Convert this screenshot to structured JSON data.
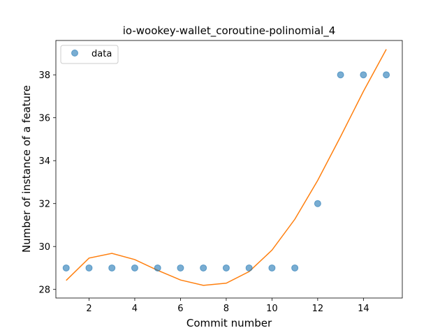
{
  "chart_data": {
    "type": "scatter",
    "title": "io-wookey-wallet_coroutine-polinomial_4",
    "xlabel": "Commit number",
    "ylabel": "Number of instance of a feature",
    "xlim": [
      0.55,
      15.7
    ],
    "ylim": [
      27.6,
      39.6
    ],
    "xticks": [
      2,
      4,
      6,
      8,
      10,
      12,
      14
    ],
    "yticks": [
      28,
      30,
      32,
      34,
      36,
      38
    ],
    "grid": false,
    "legend_position": "top-left",
    "series": [
      {
        "name": "data",
        "kind": "scatter",
        "color": "#1f77b4",
        "x": [
          1,
          2,
          3,
          4,
          5,
          6,
          7,
          8,
          9,
          10,
          11,
          12,
          13,
          14,
          15
        ],
        "y": [
          29,
          29,
          29,
          29,
          29,
          29,
          29,
          29,
          29,
          29,
          29,
          32,
          38,
          38,
          38
        ]
      },
      {
        "kind": "line",
        "color": "#ff7f0e",
        "x": [
          1,
          2,
          3,
          4,
          5,
          6,
          7,
          8,
          9,
          10,
          11,
          12,
          13,
          14,
          15
        ],
        "y": [
          28.42,
          29.46,
          29.68,
          29.39,
          28.89,
          28.44,
          28.19,
          28.29,
          28.83,
          29.83,
          31.27,
          33.08,
          35.12,
          37.23,
          39.19
        ]
      }
    ]
  }
}
